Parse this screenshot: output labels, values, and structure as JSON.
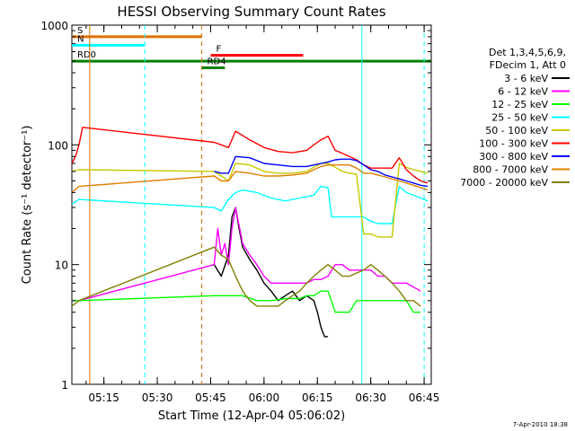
{
  "chart_data": {
    "type": "line",
    "title": "HESSI Observing Summary Count Rates",
    "xlabel": "Start Time (12-Apr-04 05:06:02)",
    "ylabel": "Count Rate (s⁻¹ detector⁻¹)",
    "xlim_minutes": [
      0,
      101
    ],
    "ylim": [
      1,
      1000
    ],
    "yscale": "log",
    "grid": false,
    "x_ticks": [
      {
        "label": "05:15",
        "min": 9
      },
      {
        "label": "05:30",
        "min": 24
      },
      {
        "label": "05:45",
        "min": 39
      },
      {
        "label": "06:00",
        "min": 54
      },
      {
        "label": "06:15",
        "min": 69
      },
      {
        "label": "06:30",
        "min": 84
      },
      {
        "label": "06:45",
        "min": 99
      }
    ],
    "y_ticks": [
      {
        "label": "1",
        "value": 1
      },
      {
        "label": "10",
        "value": 10
      },
      {
        "label": "100",
        "value": 100
      },
      {
        "label": "1000",
        "value": 1000
      }
    ],
    "legend_header": [
      "Det 1,3,4,5,6,9,",
      "FDecim 1, Att 0"
    ],
    "legend_position": "right",
    "footer_date": "7-Apr-2010 18:38",
    "series": [
      {
        "name": "3 - 6 keV",
        "color": "#000000",
        "points": [
          [
            40,
            10
          ],
          [
            42,
            8
          ],
          [
            44,
            12
          ],
          [
            45,
            25
          ],
          [
            46,
            30
          ],
          [
            47,
            20
          ],
          [
            48,
            14
          ],
          [
            50,
            11
          ],
          [
            52,
            9
          ],
          [
            54,
            7
          ],
          [
            56,
            6
          ],
          [
            58,
            5
          ],
          [
            60,
            5.5
          ],
          [
            62,
            6
          ],
          [
            64,
            5
          ],
          [
            66,
            5.5
          ],
          [
            68,
            5
          ],
          [
            69,
            4
          ],
          [
            70,
            3
          ],
          [
            71,
            2.5
          ],
          [
            72,
            2.5
          ]
        ]
      },
      {
        "name": "6 - 12 keV",
        "color": "#ff00ff",
        "points": [
          [
            0,
            5
          ],
          [
            2,
            5
          ],
          [
            40,
            10
          ],
          [
            41,
            20
          ],
          [
            42,
            12
          ],
          [
            43,
            15
          ],
          [
            44,
            10
          ],
          [
            45,
            20
          ],
          [
            46,
            30
          ],
          [
            48,
            15
          ],
          [
            50,
            12
          ],
          [
            52,
            10
          ],
          [
            54,
            8
          ],
          [
            56,
            7
          ],
          [
            58,
            7
          ],
          [
            60,
            7
          ],
          [
            62,
            7
          ],
          [
            64,
            7
          ],
          [
            66,
            7
          ],
          [
            68,
            7.5
          ],
          [
            70,
            7.5
          ],
          [
            72,
            8
          ],
          [
            74,
            10
          ],
          [
            76,
            10
          ],
          [
            78,
            9
          ],
          [
            80,
            9
          ],
          [
            82,
            9
          ],
          [
            84,
            9
          ],
          [
            86,
            8
          ],
          [
            88,
            8
          ],
          [
            90,
            7
          ],
          [
            92,
            7
          ],
          [
            94,
            7
          ],
          [
            96,
            6.5
          ],
          [
            98,
            6
          ]
        ]
      },
      {
        "name": "12 - 25 keV",
        "color": "#00ff00",
        "points": [
          [
            0,
            5
          ],
          [
            2,
            5
          ],
          [
            40,
            5.5
          ],
          [
            44,
            5.5
          ],
          [
            48,
            5.5
          ],
          [
            52,
            5
          ],
          [
            56,
            5
          ],
          [
            60,
            5.2
          ],
          [
            64,
            5.2
          ],
          [
            66,
            5.5
          ],
          [
            68,
            5.5
          ],
          [
            70,
            6
          ],
          [
            72,
            6
          ],
          [
            74,
            4
          ],
          [
            76,
            4
          ],
          [
            78,
            4
          ],
          [
            80,
            5
          ],
          [
            82,
            5
          ],
          [
            84,
            5
          ],
          [
            86,
            5
          ],
          [
            88,
            5
          ],
          [
            90,
            5
          ],
          [
            92,
            5
          ],
          [
            94,
            5
          ],
          [
            96,
            4
          ],
          [
            98,
            4
          ]
        ]
      },
      {
        "name": "25 - 50 keV",
        "color": "#00ffff",
        "points": [
          [
            0,
            32
          ],
          [
            2,
            35
          ],
          [
            40,
            30
          ],
          [
            42,
            28
          ],
          [
            44,
            35
          ],
          [
            46,
            40
          ],
          [
            48,
            42
          ],
          [
            52,
            40
          ],
          [
            56,
            36
          ],
          [
            60,
            34
          ],
          [
            64,
            36
          ],
          [
            68,
            38
          ],
          [
            70,
            45
          ],
          [
            72,
            44
          ],
          [
            73,
            25
          ],
          [
            76,
            25
          ],
          [
            78,
            25
          ],
          [
            80,
            25
          ],
          [
            82,
            25
          ],
          [
            84,
            23
          ],
          [
            86,
            22
          ],
          [
            88,
            22
          ],
          [
            90,
            22
          ],
          [
            92,
            45
          ],
          [
            94,
            40
          ],
          [
            96,
            38
          ],
          [
            98,
            36
          ],
          [
            100,
            34
          ]
        ]
      },
      {
        "name": "50 - 100 keV",
        "color": "#c8c800",
        "points": [
          [
            0,
            60
          ],
          [
            2,
            62
          ],
          [
            40,
            60
          ],
          [
            42,
            55
          ],
          [
            44,
            50
          ],
          [
            46,
            70
          ],
          [
            50,
            68
          ],
          [
            54,
            60
          ],
          [
            58,
            58
          ],
          [
            62,
            58
          ],
          [
            66,
            60
          ],
          [
            68,
            65
          ],
          [
            70,
            70
          ],
          [
            72,
            70
          ],
          [
            74,
            65
          ],
          [
            76,
            60
          ],
          [
            78,
            58
          ],
          [
            80,
            57
          ],
          [
            82,
            18
          ],
          [
            84,
            18
          ],
          [
            86,
            17
          ],
          [
            88,
            17
          ],
          [
            90,
            17
          ],
          [
            92,
            70
          ],
          [
            94,
            65
          ],
          [
            96,
            62
          ],
          [
            98,
            60
          ],
          [
            100,
            58
          ]
        ]
      },
      {
        "name": "100 - 300 keV",
        "color": "#ff0000",
        "points": [
          [
            0,
            70
          ],
          [
            1,
            80
          ],
          [
            2,
            100
          ],
          [
            3,
            140
          ],
          [
            40,
            105
          ],
          [
            42,
            100
          ],
          [
            44,
            95
          ],
          [
            46,
            130
          ],
          [
            50,
            110
          ],
          [
            54,
            95
          ],
          [
            58,
            88
          ],
          [
            62,
            86
          ],
          [
            66,
            90
          ],
          [
            68,
            100
          ],
          [
            70,
            110
          ],
          [
            72,
            118
          ],
          [
            74,
            90
          ],
          [
            76,
            85
          ],
          [
            78,
            80
          ],
          [
            80,
            75
          ],
          [
            82,
            68
          ],
          [
            84,
            64
          ],
          [
            86,
            64
          ],
          [
            88,
            64
          ],
          [
            90,
            64
          ],
          [
            92,
            78
          ],
          [
            94,
            62
          ],
          [
            96,
            55
          ],
          [
            98,
            50
          ],
          [
            100,
            48
          ]
        ]
      },
      {
        "name": "300 - 800 keV",
        "color": "#0000ff",
        "points": [
          [
            40,
            60
          ],
          [
            42,
            58
          ],
          [
            44,
            58
          ],
          [
            46,
            80
          ],
          [
            50,
            78
          ],
          [
            54,
            70
          ],
          [
            58,
            68
          ],
          [
            62,
            66
          ],
          [
            66,
            66
          ],
          [
            68,
            68
          ],
          [
            70,
            70
          ],
          [
            72,
            72
          ],
          [
            74,
            75
          ],
          [
            76,
            76
          ],
          [
            78,
            76
          ],
          [
            80,
            74
          ],
          [
            82,
            68
          ],
          [
            84,
            62
          ],
          [
            86,
            60
          ],
          [
            88,
            56
          ],
          [
            90,
            54
          ],
          [
            92,
            52
          ],
          [
            94,
            50
          ],
          [
            96,
            48
          ],
          [
            98,
            46
          ],
          [
            100,
            45
          ]
        ]
      },
      {
        "name": "800 - 7000 keV",
        "color": "#e08000",
        "points": [
          [
            0,
            40
          ],
          [
            2,
            45
          ],
          [
            40,
            55
          ],
          [
            42,
            50
          ],
          [
            44,
            50
          ],
          [
            46,
            60
          ],
          [
            50,
            58
          ],
          [
            54,
            55
          ],
          [
            58,
            55
          ],
          [
            62,
            56
          ],
          [
            66,
            58
          ],
          [
            68,
            62
          ],
          [
            70,
            66
          ],
          [
            72,
            68
          ],
          [
            74,
            68
          ],
          [
            76,
            68
          ],
          [
            78,
            68
          ],
          [
            80,
            64
          ],
          [
            82,
            58
          ],
          [
            84,
            58
          ],
          [
            86,
            56
          ],
          [
            88,
            54
          ],
          [
            90,
            52
          ],
          [
            92,
            50
          ],
          [
            94,
            48
          ],
          [
            96,
            46
          ],
          [
            98,
            44
          ],
          [
            100,
            42
          ]
        ]
      },
      {
        "name": "7000 - 20000 keV",
        "color": "#808000",
        "points": [
          [
            0,
            4.5
          ],
          [
            2,
            5
          ],
          [
            40,
            14
          ],
          [
            42,
            12
          ],
          [
            44,
            11
          ],
          [
            46,
            8
          ],
          [
            48,
            6
          ],
          [
            50,
            5
          ],
          [
            52,
            4.5
          ],
          [
            54,
            4.5
          ],
          [
            56,
            4.5
          ],
          [
            58,
            4.5
          ],
          [
            60,
            5
          ],
          [
            62,
            5.5
          ],
          [
            64,
            6
          ],
          [
            66,
            7
          ],
          [
            68,
            8
          ],
          [
            70,
            9
          ],
          [
            72,
            10
          ],
          [
            74,
            9
          ],
          [
            76,
            8
          ],
          [
            78,
            8
          ],
          [
            80,
            8.5
          ],
          [
            82,
            9
          ],
          [
            84,
            10
          ],
          [
            86,
            9
          ],
          [
            88,
            8
          ],
          [
            90,
            7
          ],
          [
            92,
            6
          ],
          [
            94,
            5
          ],
          [
            96,
            5
          ],
          [
            98,
            4.5
          ]
        ]
      }
    ],
    "annotations": [
      {
        "label": "S",
        "color": "#e07000",
        "min": 0,
        "max": 36.5,
        "value": 800
      },
      {
        "label": "N",
        "color": "#00ffff",
        "min": 0,
        "max": 20.5,
        "value": 680
      },
      {
        "label": "F",
        "color": "#ff0000",
        "min": 39,
        "max": 65,
        "value": 560
      },
      {
        "label": "RD0",
        "color": "#008000",
        "min": 0,
        "max": 101,
        "value": 500
      },
      {
        "label": "RD4",
        "color": "#008000",
        "min": 36.5,
        "max": 43,
        "value": 440
      }
    ],
    "vlines": [
      {
        "min": 5,
        "color": "#e07000",
        "dash": false
      },
      {
        "min": 20.5,
        "color": "#00ffff",
        "dash": true
      },
      {
        "min": 36.5,
        "color": "#e07000",
        "dash": true
      },
      {
        "min": 81.5,
        "color": "#00ffff",
        "dash": false
      },
      {
        "min": 99,
        "color": "#00ffff",
        "dash": true
      }
    ]
  }
}
